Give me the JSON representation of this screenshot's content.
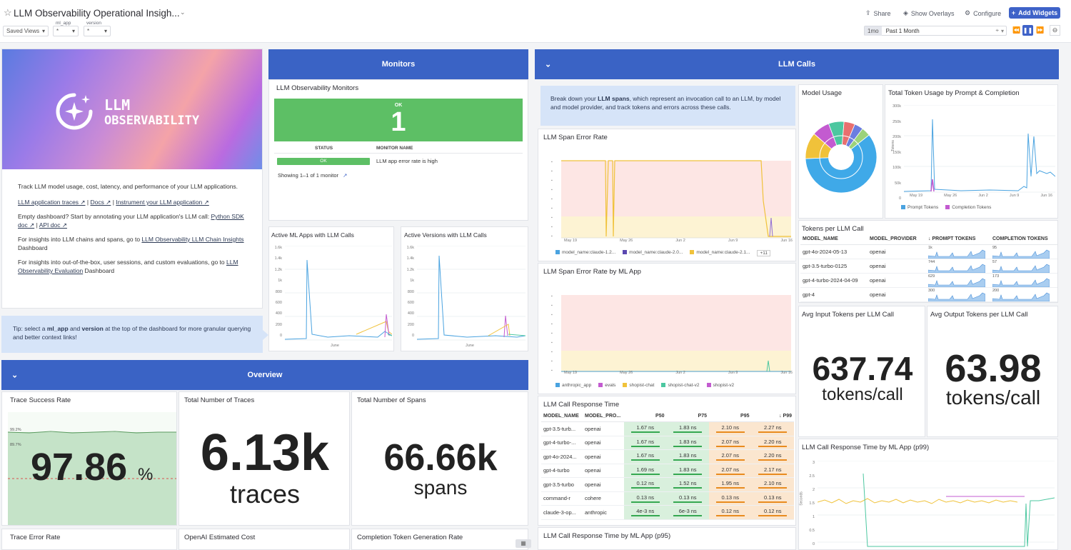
{
  "header": {
    "title": "LLM Observability Operational Insigh...",
    "saved_views": "Saved Views",
    "vars": [
      {
        "label": "ml_app",
        "value": "*"
      },
      {
        "label": "version",
        "value": "*"
      }
    ],
    "share": "Share",
    "show_overlays": "Show Overlays",
    "configure": "Configure",
    "add_widgets": "Add Widgets",
    "time_badge": "1mo",
    "time_range": "Past 1 Month"
  },
  "intro": {
    "logo_line1": "LLM",
    "logo_line2": "OBSERVABILITY",
    "p1": "Track LLM model usage, cost, latency, and performance of your LLM applications.",
    "links": [
      "LLM application traces ↗",
      "Docs ↗",
      "Instrument your LLM application ↗"
    ],
    "link_sep": "|",
    "p2_prefix": "Empty dashboard? Start by annotating your LLM application's LLM call: ",
    "p2_link1": "Python SDK doc ↗",
    "p2_link2": "API doc ↗",
    "p3_prefix": "For insights into LLM chains and spans, go to ",
    "p3_link": "LLM Observability LLM Chain Insights",
    "p3_suffix": " Dashboard",
    "p4_prefix": "For insights into out-of-the-box, user sessions, and custom evaluations, go to ",
    "p4_link": "LLM Observability Evaluation",
    "p4_suffix": " Dashboard",
    "tip_prefix": "Tip: select a ",
    "tip_b1": "ml_app",
    "tip_mid": " and ",
    "tip_b2": "version",
    "tip_suffix": " at the top of the dashboard for more granular querying and better context links!"
  },
  "monitors": {
    "group_title": "Monitors",
    "panel_title": "LLM Observability Monitors",
    "status_label": "OK",
    "count": "1",
    "col_status": "STATUS",
    "col_name": "MONITOR NAME",
    "row_status": "OK",
    "row_name": "LLM app error rate is high",
    "showing": "Showing 1–1 of 1 monitor"
  },
  "active_apps": {
    "title": "Active ML Apps with LLM Calls",
    "yticks": [
      "1.6k",
      "1.4k",
      "1.2k",
      "1k",
      "800",
      "600",
      "400",
      "200",
      "0"
    ],
    "xtick": "June"
  },
  "active_versions": {
    "title": "Active Versions with LLM Calls",
    "yticks": [
      "1.6k",
      "1.4k",
      "1.2k",
      "1k",
      "800",
      "600",
      "400",
      "200",
      "0"
    ],
    "xtick": "June"
  },
  "llm_calls": {
    "group_title": "LLM Calls",
    "note_prefix": "Break down your ",
    "note_bold": "LLM spans",
    "note_suffix": ", which represent an invocation call to an LLM, by model and model provider, and track tokens and errors across these calls.",
    "span_error_title": "LLM Span Error Rate",
    "span_error_legend": [
      "model_name:claude-1.2...",
      "model_name:claude-2.0...",
      "model_name:claude-2.1...",
      "+11"
    ],
    "span_error_ml_title": "LLM Span Error Rate by ML App",
    "span_error_ml_legend": [
      "anthropic_app",
      "evals",
      "shopist-chat",
      "shopist-chat-v2",
      "shopist-v2"
    ],
    "xticks": [
      "May 19",
      "May 26",
      "Jun 2",
      "Jun 9",
      "Jun 16"
    ],
    "model_usage_title": "Model Usage",
    "token_usage_title": "Total Token Usage by Prompt & Completion",
    "token_yticks": [
      "300k",
      "250k",
      "200k",
      "150k",
      "100k",
      "50k",
      "0"
    ],
    "token_xticks": [
      "May 19",
      "May 26",
      "Jun 2",
      "Jun 9",
      "Jun 16"
    ],
    "token_ylabel": "Tokens",
    "token_legend": [
      "Prompt Tokens",
      "Completion Tokens"
    ],
    "tpl_title": "Tokens per LLM Call",
    "tpl_headers": [
      "MODEL_NAME",
      "MODEL_PROVIDER",
      "↓ PROMPT TOKENS",
      "COMPLETION TOKENS"
    ],
    "tpl_rows": [
      {
        "model": "gpt-4o-2024-05-13",
        "provider": "openai",
        "p": "1k",
        "c": "95"
      },
      {
        "model": "gpt-3.5-turbo-0125",
        "provider": "openai",
        "p": "744",
        "c": "57"
      },
      {
        "model": "gpt-4-turbo-2024-04-09",
        "provider": "openai",
        "p": "629",
        "c": "173"
      },
      {
        "model": "gpt-4",
        "provider": "openai",
        "p": "300",
        "c": "200"
      }
    ],
    "avg_in_title": "Avg Input Tokens per LLM Call",
    "avg_in_value": "637.74",
    "avg_in_unit": "tokens/call",
    "avg_out_title": "Avg Output Tokens per LLM Call",
    "avg_out_value": "63.98",
    "avg_out_unit": "tokens/call",
    "rt_title": "LLM Call Response Time",
    "rt_headers": [
      "MODEL_NAME",
      "MODEL_PRO...",
      "P50",
      "P75",
      "P95",
      "↓ P99"
    ],
    "rt_rows": [
      {
        "model": "gpt-3.5-turb...",
        "provider": "openai",
        "p50": "1.67 ns",
        "p75": "1.83 ns",
        "p95": "2.10 ns",
        "p99": "2.27 ns"
      },
      {
        "model": "gpt-4-turbo-...",
        "provider": "openai",
        "p50": "1.67 ns",
        "p75": "1.83 ns",
        "p95": "2.07 ns",
        "p99": "2.20 ns"
      },
      {
        "model": "gpt-4o-2024...",
        "provider": "openai",
        "p50": "1.67 ns",
        "p75": "1.83 ns",
        "p95": "2.07 ns",
        "p99": "2.20 ns"
      },
      {
        "model": "gpt-4-turbo",
        "provider": "openai",
        "p50": "1.69 ns",
        "p75": "1.83 ns",
        "p95": "2.07 ns",
        "p99": "2.17 ns"
      },
      {
        "model": "gpt-3.5-turbo",
        "provider": "openai",
        "p50": "0.12 ns",
        "p75": "1.52 ns",
        "p95": "1.95 ns",
        "p99": "2.10 ns"
      },
      {
        "model": "command-r",
        "provider": "cohere",
        "p50": "0.13 ns",
        "p75": "0.13 ns",
        "p95": "0.13 ns",
        "p99": "0.13 ns"
      },
      {
        "model": "claude-3-op...",
        "provider": "anthropic",
        "p50": "4e-3 ns",
        "p75": "6e-3 ns",
        "p95": "0.12 ns",
        "p99": "0.12 ns"
      }
    ],
    "rt_ml_title": "LLM Call Response Time by ML App (p95)",
    "rt99_title": "LLM Call Response Time by ML App (p99)",
    "rt99_yticks": [
      "3",
      "2.5",
      "2",
      "1.5",
      "1",
      "0.5",
      "0"
    ],
    "rt99_ylabel": "Seconds"
  },
  "overview": {
    "group_title": "Overview",
    "success_title": "Trace Success Rate",
    "success_value": "97.86",
    "success_unit": "%",
    "success_ticks": [
      "99.2%",
      "89.7%"
    ],
    "traces_title": "Total Number of Traces",
    "traces_value": "6.13k",
    "traces_unit": "traces",
    "spans_title": "Total Number of Spans",
    "spans_value": "66.66k",
    "spans_unit": "spans",
    "error_rate_title": "Trace Error Rate",
    "cost_title": "OpenAI Estimated Cost",
    "completion_rate_title": "Completion Token Generation Rate"
  },
  "chart_data": [
    {
      "type": "pie",
      "title": "Model Usage",
      "values": [
        60,
        12,
        8,
        7,
        5,
        4,
        4
      ]
    },
    {
      "type": "line",
      "title": "Total Token Usage by Prompt & Completion",
      "ylim": [
        0,
        300000
      ],
      "series": [
        {
          "name": "Prompt Tokens"
        },
        {
          "name": "Completion Tokens"
        }
      ]
    }
  ]
}
